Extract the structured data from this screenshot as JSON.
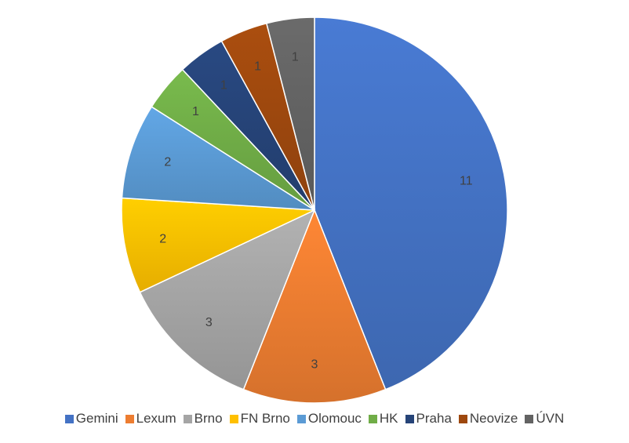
{
  "chart_data": {
    "type": "pie",
    "categories": [
      "Gemini",
      "Lexum",
      "Brno",
      "FN Brno",
      "Olomouc",
      "HK",
      "Praha",
      "Neovize",
      "ÚVN"
    ],
    "values": [
      11,
      3,
      3,
      2,
      2,
      1,
      1,
      1,
      1
    ],
    "data_labels": [
      "11",
      "3",
      "3",
      "2",
      "2",
      "1",
      "1",
      "1",
      "1"
    ],
    "colors": [
      "#4472C4",
      "#ED7D31",
      "#A5A5A5",
      "#FFC000",
      "#5B9BD5",
      "#70AD47",
      "#264478",
      "#9E480E",
      "#636363"
    ],
    "start_angle_deg": 0,
    "direction": "clockwise",
    "legend_position": "bottom"
  }
}
